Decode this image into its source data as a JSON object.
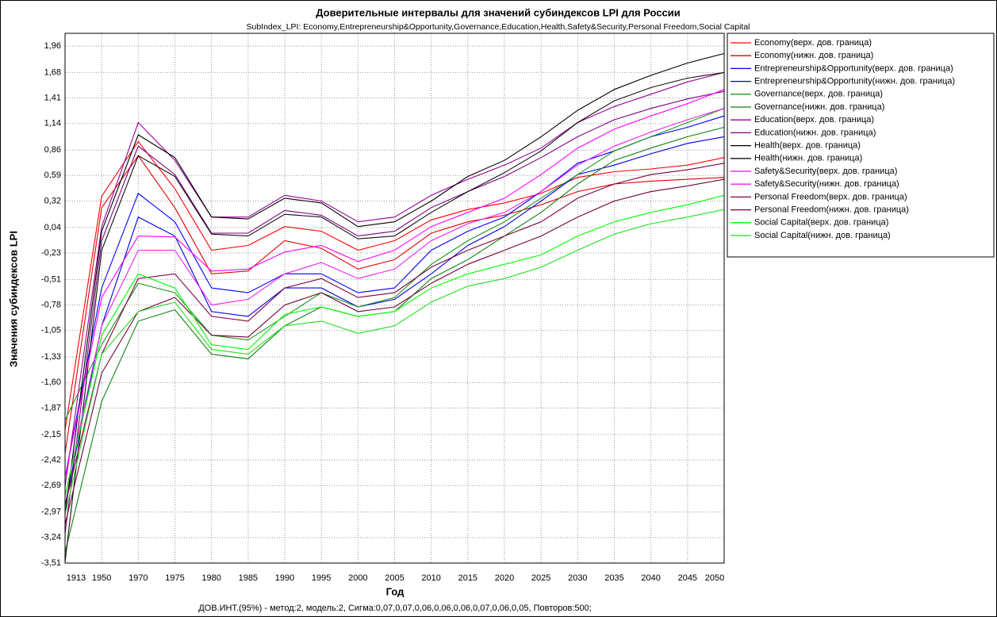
{
  "chart_data": {
    "type": "line",
    "title": "Доверительные интервалы для значений субиндексов LPI для России",
    "subtitle": "SubIndex_LPI: Economy,Entrepreneurship&Opportunity,Governance,Education,Health,Safety&Security,Personal Freedom,Social Capital",
    "x_label": "Год",
    "y_label": "Значения субиндексов LPI",
    "annotation": "ДОВ.ИНТ.(95%) - метод:2, модель:2, Сигма:0,07,0,07,0,06,0,06,0,06,0,07,0,06,0,05, Повторов:500;",
    "categories": [
      "1913",
      "1950",
      "1970",
      "1975",
      "1980",
      "1985",
      "1990",
      "1995",
      "2000",
      "2005",
      "2010",
      "2015",
      "2020",
      "2025",
      "2030",
      "2035",
      "2040",
      "2045",
      "2050"
    ],
    "ylim": [
      -3.51,
      1.96
    ],
    "yticks": [
      {
        "value": 1.96,
        "label": "1,96"
      },
      {
        "value": 1.68,
        "label": "1,68"
      },
      {
        "value": 1.41,
        "label": "1,41"
      },
      {
        "value": 1.14,
        "label": "1,14"
      },
      {
        "value": 0.86,
        "label": "0,86"
      },
      {
        "value": 0.59,
        "label": "0,59"
      },
      {
        "value": 0.32,
        "label": "0,32"
      },
      {
        "value": 0.04,
        "label": "0,04"
      },
      {
        "value": -0.23,
        "label": "-0,23"
      },
      {
        "value": -0.51,
        "label": "-0,51"
      },
      {
        "value": -0.78,
        "label": "-0,78"
      },
      {
        "value": -1.05,
        "label": "-1,05"
      },
      {
        "value": -1.33,
        "label": "-1,33"
      },
      {
        "value": -1.6,
        "label": "-1,60"
      },
      {
        "value": -1.87,
        "label": "-1,87"
      },
      {
        "value": -2.15,
        "label": "-2,15"
      },
      {
        "value": -2.42,
        "label": "-2,42"
      },
      {
        "value": -2.69,
        "label": "-2,69"
      },
      {
        "value": -2.97,
        "label": "-2,97"
      },
      {
        "value": -3.24,
        "label": "-3,24"
      },
      {
        "value": -3.51,
        "label": "-3,51"
      }
    ],
    "grid": true,
    "legend": "right",
    "series": [
      {
        "name": "Economy(верх. дов. граница)",
        "color": "#ff0000",
        "values": [
          -2.1,
          0.37,
          0.95,
          0.45,
          -0.2,
          -0.15,
          0.05,
          0.0,
          -0.2,
          -0.1,
          0.12,
          0.23,
          0.3,
          0.4,
          0.57,
          0.63,
          0.66,
          0.7,
          0.78
        ]
      },
      {
        "name": "Economy(нижн. дов. граница)",
        "color": "#e00000",
        "values": [
          -2.35,
          0.25,
          0.8,
          0.25,
          -0.45,
          -0.42,
          -0.1,
          -0.18,
          -0.4,
          -0.3,
          -0.02,
          0.1,
          0.17,
          0.28,
          0.42,
          0.5,
          0.53,
          0.55,
          0.57
        ]
      },
      {
        "name": "Entrepreneurship&Opportunity(верх. дов. граница)",
        "color": "#0000ff",
        "values": [
          -2.6,
          -0.6,
          0.4,
          0.1,
          -0.6,
          -0.65,
          -0.45,
          -0.45,
          -0.65,
          -0.6,
          -0.2,
          0.0,
          0.15,
          0.42,
          0.72,
          0.85,
          1.0,
          1.1,
          1.22
        ]
      },
      {
        "name": "Entrepreneurship&Opportunity(нижн. дов. граница)",
        "color": "#0000e0",
        "values": [
          -2.9,
          -1.0,
          0.15,
          -0.05,
          -0.85,
          -0.9,
          -0.6,
          -0.6,
          -0.8,
          -0.72,
          -0.45,
          -0.15,
          0.05,
          0.32,
          0.6,
          0.7,
          0.82,
          0.93,
          1.0
        ]
      },
      {
        "name": "Governance(верх. дов. граница)",
        "color": "#1a9a1a",
        "values": [
          -2.0,
          -1.2,
          -0.55,
          -0.65,
          -1.1,
          -1.15,
          -0.9,
          -0.65,
          -0.8,
          -0.7,
          -0.35,
          -0.1,
          0.1,
          0.35,
          0.6,
          0.85,
          1.0,
          1.15,
          1.3
        ]
      },
      {
        "name": "Governance(нижн. дов. граница)",
        "color": "#138013",
        "values": [
          -3.4,
          -1.8,
          -0.95,
          -0.83,
          -1.3,
          -1.35,
          -1.0,
          -0.8,
          -0.9,
          -0.85,
          -0.5,
          -0.3,
          -0.05,
          0.2,
          0.5,
          0.75,
          0.88,
          1.0,
          1.1
        ]
      },
      {
        "name": "Education(верх. дов. граница)",
        "color": "#990099",
        "values": [
          -2.7,
          0.05,
          1.15,
          0.75,
          0.15,
          0.15,
          0.38,
          0.32,
          0.1,
          0.15,
          0.38,
          0.55,
          0.7,
          0.88,
          1.15,
          1.32,
          1.45,
          1.58,
          1.68
        ]
      },
      {
        "name": "Education(нижн. дов. граница)",
        "color": "#800080",
        "values": [
          -3.2,
          -0.1,
          0.9,
          0.6,
          -0.02,
          -0.02,
          0.22,
          0.17,
          -0.05,
          0.0,
          0.25,
          0.42,
          0.58,
          0.78,
          1.0,
          1.18,
          1.3,
          1.4,
          1.48
        ]
      },
      {
        "name": "Health(верх. дов. граница)",
        "color": "#000000",
        "values": [
          -3.0,
          0.0,
          1.02,
          0.78,
          0.15,
          0.13,
          0.35,
          0.3,
          0.05,
          0.1,
          0.32,
          0.58,
          0.75,
          1.0,
          1.28,
          1.5,
          1.65,
          1.78,
          1.88
        ]
      },
      {
        "name": "Health(нижн. дов. граница)",
        "color": "#101010",
        "values": [
          -3.5,
          -0.2,
          0.8,
          0.58,
          -0.03,
          -0.05,
          0.18,
          0.15,
          -0.08,
          -0.05,
          0.2,
          0.42,
          0.62,
          0.85,
          1.15,
          1.38,
          1.52,
          1.62,
          1.68
        ]
      },
      {
        "name": "Safety&Security(верх. дов. граница)",
        "color": "#ff00ff",
        "values": [
          -2.6,
          -0.7,
          -0.05,
          -0.06,
          -0.42,
          -0.4,
          -0.22,
          -0.15,
          -0.32,
          -0.2,
          0.05,
          0.2,
          0.35,
          0.6,
          0.88,
          1.08,
          1.22,
          1.35,
          1.5
        ]
      },
      {
        "name": "Safety&Security(нижн. дов. граница)",
        "color": "#f020f0",
        "values": [
          -2.8,
          -1.0,
          -0.2,
          -0.2,
          -0.78,
          -0.72,
          -0.45,
          -0.33,
          -0.5,
          -0.4,
          -0.1,
          0.08,
          0.2,
          0.42,
          0.7,
          0.9,
          1.05,
          1.18,
          1.3
        ]
      },
      {
        "name": "Personal Freedom(верх. дов. граница)",
        "color": "#800040",
        "values": [
          -2.9,
          -1.3,
          -0.5,
          -0.45,
          -0.9,
          -0.95,
          -0.6,
          -0.5,
          -0.7,
          -0.65,
          -0.38,
          -0.2,
          -0.05,
          0.1,
          0.35,
          0.5,
          0.6,
          0.65,
          0.72
        ]
      },
      {
        "name": "Personal Freedom(нижн. дов. граница)",
        "color": "#700038",
        "values": [
          -3.1,
          -1.5,
          -0.85,
          -0.7,
          -1.1,
          -1.12,
          -0.78,
          -0.65,
          -0.85,
          -0.8,
          -0.55,
          -0.35,
          -0.2,
          -0.05,
          0.15,
          0.32,
          0.42,
          0.48,
          0.55
        ]
      },
      {
        "name": "Social Capital(верх. дов. граница)",
        "color": "#00ff00",
        "values": [
          -2.8,
          -1.1,
          -0.45,
          -0.6,
          -1.2,
          -1.25,
          -0.88,
          -0.8,
          -0.9,
          -0.85,
          -0.6,
          -0.45,
          -0.35,
          -0.25,
          -0.05,
          0.1,
          0.2,
          0.28,
          0.38
        ]
      },
      {
        "name": "Social Capital(нижн. дов. граница)",
        "color": "#20e020",
        "values": [
          -3.0,
          -1.3,
          -0.85,
          -0.75,
          -1.25,
          -1.3,
          -1.0,
          -0.95,
          -1.08,
          -1.0,
          -0.75,
          -0.58,
          -0.5,
          -0.38,
          -0.2,
          -0.03,
          0.08,
          0.15,
          0.23
        ]
      }
    ]
  }
}
